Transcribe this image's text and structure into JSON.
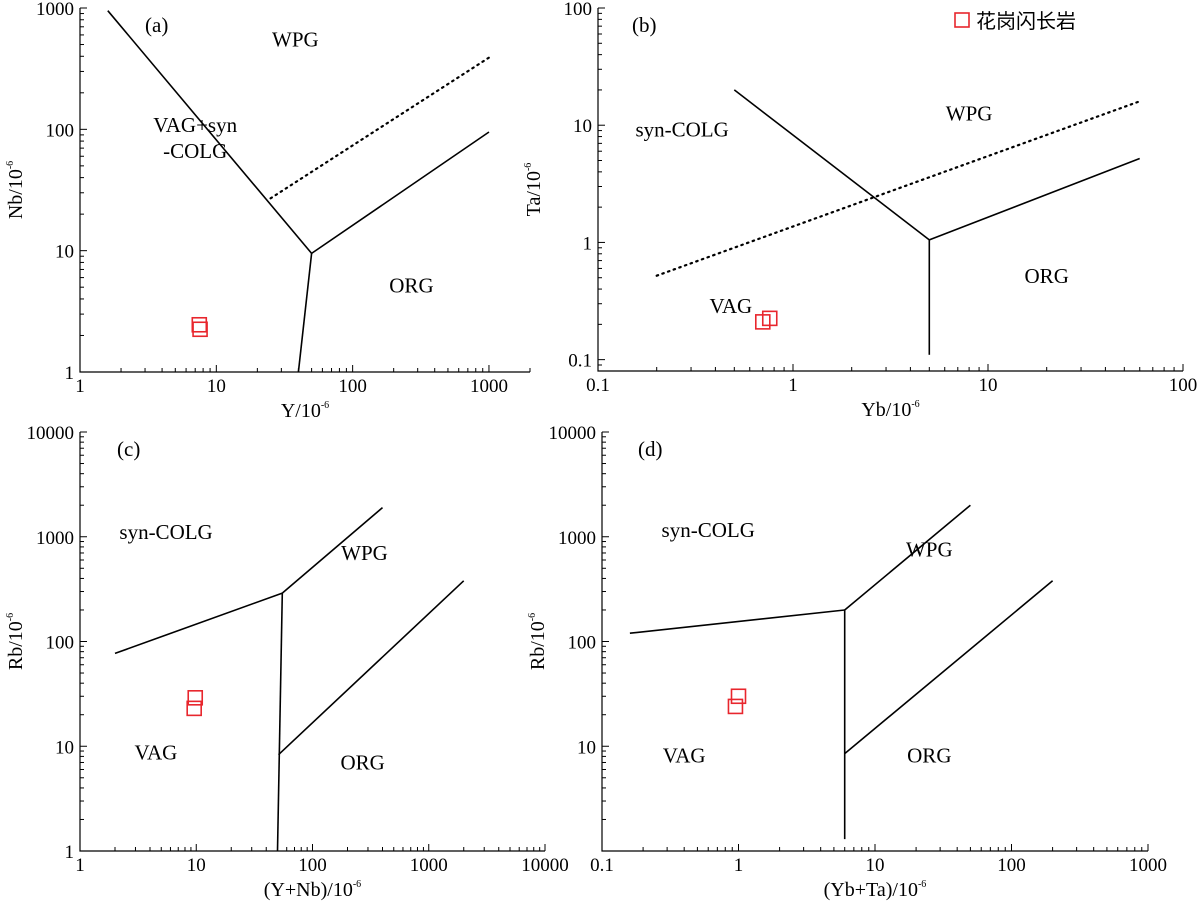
{
  "legend": {
    "label": "花岗闪长岩",
    "color": "#e8262d",
    "symbol": "open-square"
  },
  "chart_data": [
    {
      "type": "scatter",
      "panel_label": "(a)",
      "xlabel": "Y/10",
      "xlabel_sup": "-6",
      "ylabel": "Nb/10",
      "ylabel_sup": "-6",
      "xscale": "log",
      "yscale": "log",
      "xlim": [
        1,
        2000
      ],
      "ylim": [
        1,
        1000
      ],
      "x_ticks": [
        {
          "v": 1,
          "t": "1"
        },
        {
          "v": 10,
          "t": "10"
        },
        {
          "v": 100,
          "t": "100"
        },
        {
          "v": 1000,
          "t": "1000"
        }
      ],
      "y_ticks": [
        {
          "v": 1,
          "t": "1"
        },
        {
          "v": 10,
          "t": "10"
        },
        {
          "v": 100,
          "t": "100"
        },
        {
          "v": 1000,
          "t": "1000"
        }
      ],
      "boundaries": [
        {
          "style": "solid",
          "points": [
            [
              1.6,
              950
            ],
            [
              50,
              9.5
            ]
          ]
        },
        {
          "style": "solid",
          "points": [
            [
              50,
              9.5
            ],
            [
              40,
              1
            ]
          ]
        },
        {
          "style": "solid",
          "points": [
            [
              50,
              9.5
            ],
            [
              1000,
              95
            ]
          ]
        },
        {
          "style": "dotted",
          "points": [
            [
              25,
              27
            ],
            [
              1000,
              390
            ]
          ]
        }
      ],
      "regions": [
        {
          "label": "WPG",
          "x": 38,
          "y": 480
        },
        {
          "label": "VAG+syn",
          "x": 7,
          "y": 95
        },
        {
          "label": "-COLG",
          "x": 7,
          "y": 58
        },
        {
          "label": "ORG",
          "x": 270,
          "y": 4.5
        }
      ],
      "series": [
        {
          "color": "#e8262d",
          "points": [
            [
              7.5,
              2.45
            ],
            [
              7.6,
              2.25
            ]
          ]
        }
      ]
    },
    {
      "type": "scatter",
      "panel_label": "(b)",
      "xlabel": "Yb/10",
      "xlabel_sup": "-6",
      "ylabel": "Ta/10",
      "ylabel_sup": "-6",
      "xscale": "log",
      "yscale": "log",
      "xlim": [
        0.1,
        100
      ],
      "ylim": [
        0.08,
        100
      ],
      "x_ticks": [
        {
          "v": 0.1,
          "t": "0.1"
        },
        {
          "v": 1,
          "t": "1"
        },
        {
          "v": 10,
          "t": "10"
        },
        {
          "v": 100,
          "t": "100"
        }
      ],
      "y_ticks": [
        {
          "v": 0.1,
          "t": "0.1"
        },
        {
          "v": 1,
          "t": "1"
        },
        {
          "v": 10,
          "t": "10"
        },
        {
          "v": 100,
          "t": "100"
        }
      ],
      "boundaries": [
        {
          "style": "solid",
          "points": [
            [
              0.5,
              20
            ],
            [
              5,
              1.05
            ]
          ]
        },
        {
          "style": "solid",
          "points": [
            [
              5,
              1.05
            ],
            [
              5,
              0.11
            ]
          ]
        },
        {
          "style": "solid",
          "points": [
            [
              5,
              1.05
            ],
            [
              60,
              5.2
            ]
          ]
        },
        {
          "style": "dotted",
          "points": [
            [
              0.2,
              0.52
            ],
            [
              60,
              16
            ]
          ]
        }
      ],
      "regions": [
        {
          "label": "WPG",
          "x": 8,
          "y": 11
        },
        {
          "label": "syn-COLG",
          "x": 0.27,
          "y": 8
        },
        {
          "label": "VAG",
          "x": 0.48,
          "y": 0.25
        },
        {
          "label": "ORG",
          "x": 20,
          "y": 0.45
        }
      ],
      "series": [
        {
          "color": "#e8262d",
          "points": [
            [
              0.7,
              0.21
            ],
            [
              0.76,
              0.225
            ]
          ]
        }
      ]
    },
    {
      "type": "scatter",
      "panel_label": "(c)",
      "xlabel": "(Y+Nb)/10",
      "xlabel_sup": "-6",
      "ylabel": "Rb/10",
      "ylabel_sup": "-6",
      "xscale": "log",
      "yscale": "log",
      "xlim": [
        1,
        10000
      ],
      "ylim": [
        1,
        10000
      ],
      "x_ticks": [
        {
          "v": 1,
          "t": "1"
        },
        {
          "v": 10,
          "t": "10"
        },
        {
          "v": 100,
          "t": "100"
        },
        {
          "v": 1000,
          "t": "1000"
        },
        {
          "v": 10000,
          "t": "10000"
        }
      ],
      "y_ticks": [
        {
          "v": 1,
          "t": "1"
        },
        {
          "v": 10,
          "t": "10"
        },
        {
          "v": 100,
          "t": "100"
        },
        {
          "v": 1000,
          "t": "1000"
        },
        {
          "v": 10000,
          "t": "10000"
        }
      ],
      "boundaries": [
        {
          "style": "solid",
          "points": [
            [
              2,
              77
            ],
            [
              55,
              290
            ]
          ]
        },
        {
          "style": "solid",
          "points": [
            [
              55,
              290
            ],
            [
              50,
              1
            ]
          ]
        },
        {
          "style": "solid",
          "points": [
            [
              55,
              290
            ],
            [
              400,
              1900
            ]
          ]
        },
        {
          "style": "solid",
          "points": [
            [
              51,
              8.3
            ],
            [
              2000,
              380
            ]
          ]
        }
      ],
      "regions": [
        {
          "label": "syn-COLG",
          "x": 5.5,
          "y": 950
        },
        {
          "label": "WPG",
          "x": 280,
          "y": 600
        },
        {
          "label": "VAG",
          "x": 4.5,
          "y": 7.5
        },
        {
          "label": "ORG",
          "x": 270,
          "y": 6
        }
      ],
      "series": [
        {
          "color": "#e8262d",
          "points": [
            [
              9.8,
              29
            ],
            [
              9.6,
              23
            ]
          ]
        }
      ]
    },
    {
      "type": "scatter",
      "panel_label": "(d)",
      "xlabel": "(Yb+Ta)/10",
      "xlabel_sup": "-6",
      "ylabel": "Rb/10",
      "ylabel_sup": "-6",
      "xscale": "log",
      "yscale": "log",
      "xlim": [
        0.1,
        1000
      ],
      "ylim": [
        1,
        10000
      ],
      "x_ticks": [
        {
          "v": 0.1,
          "t": "0.1"
        },
        {
          "v": 1,
          "t": "1"
        },
        {
          "v": 10,
          "t": "10"
        },
        {
          "v": 100,
          "t": "100"
        },
        {
          "v": 1000,
          "t": "1000"
        }
      ],
      "y_ticks": [
        {
          "v": 10,
          "t": "10"
        },
        {
          "v": 100,
          "t": "100"
        },
        {
          "v": 1000,
          "t": "1000"
        },
        {
          "v": 10000,
          "t": "10000"
        }
      ],
      "boundaries": [
        {
          "style": "solid",
          "points": [
            [
              0.16,
              120
            ],
            [
              6,
              200
            ]
          ]
        },
        {
          "style": "solid",
          "points": [
            [
              6,
              200
            ],
            [
              6,
              1.3
            ]
          ]
        },
        {
          "style": "solid",
          "points": [
            [
              6,
              200
            ],
            [
              50,
              2000
            ]
          ]
        },
        {
          "style": "solid",
          "points": [
            [
              6,
              8.5
            ],
            [
              200,
              380
            ]
          ]
        }
      ],
      "regions": [
        {
          "label": "syn-COLG",
          "x": 0.6,
          "y": 1000
        },
        {
          "label": "WPG",
          "x": 25,
          "y": 650
        },
        {
          "label": "VAG",
          "x": 0.4,
          "y": 7
        },
        {
          "label": "ORG",
          "x": 25,
          "y": 7
        }
      ],
      "series": [
        {
          "color": "#e8262d",
          "points": [
            [
              1,
              30
            ],
            [
              0.95,
              24
            ]
          ]
        }
      ]
    }
  ]
}
